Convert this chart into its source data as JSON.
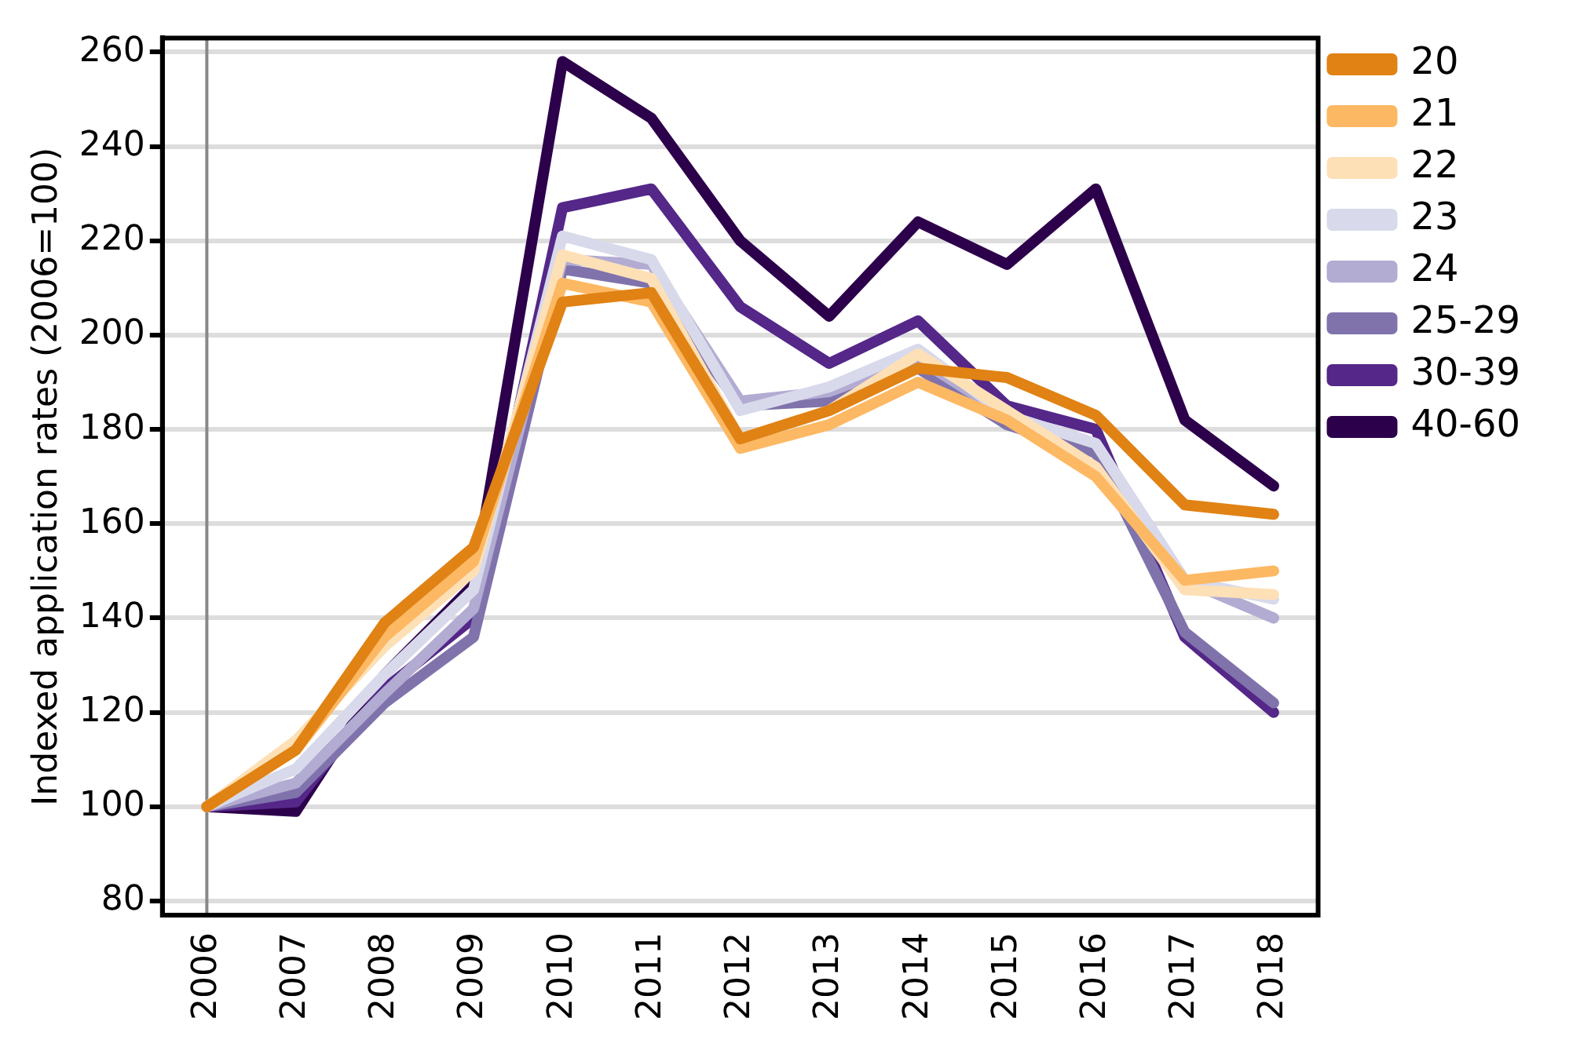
{
  "chart_data": {
    "type": "line",
    "ylabel": "Indexed application rates (2006=100)",
    "categories": [
      "2006",
      "2007",
      "2008",
      "2009",
      "2010",
      "2011",
      "2012",
      "2013",
      "2014",
      "2015",
      "2016",
      "2017",
      "2018"
    ],
    "series": [
      {
        "name": "20",
        "color": "#e08214",
        "values": [
          100,
          112,
          139,
          155,
          207,
          209,
          178,
          184,
          193,
          191,
          183,
          164,
          162
        ]
      },
      {
        "name": "21",
        "color": "#fdb863",
        "values": [
          100,
          112,
          136,
          152,
          211,
          207,
          176,
          181,
          190,
          182,
          170,
          148,
          150
        ]
      },
      {
        "name": "22",
        "color": "#fee0b6",
        "values": [
          100,
          114,
          134,
          150,
          217,
          212,
          178,
          184,
          196,
          184,
          172,
          146,
          145
        ]
      },
      {
        "name": "23",
        "color": "#d8daeb",
        "values": [
          100,
          108,
          128,
          146,
          221,
          216,
          184,
          189,
          197,
          183,
          177,
          148,
          144
        ]
      },
      {
        "name": "24",
        "color": "#b2abd2",
        "values": [
          100,
          105,
          124,
          142,
          216,
          215,
          186,
          188,
          195,
          183,
          177,
          148,
          140
        ]
      },
      {
        "name": "25-29",
        "color": "#8073ac",
        "values": [
          100,
          103,
          122,
          136,
          214,
          211,
          185,
          186,
          193,
          181,
          175,
          137,
          122
        ]
      },
      {
        "name": "30-39",
        "color": "#542788",
        "values": [
          100,
          101,
          125,
          140,
          227,
          231,
          206,
          194,
          203,
          185,
          180,
          136,
          120
        ]
      },
      {
        "name": "40-60",
        "color": "#2d004b",
        "values": [
          100,
          99,
          128,
          147,
          258,
          246,
          220,
          204,
          224,
          215,
          231,
          182,
          168
        ]
      }
    ],
    "ylim": [
      77,
      263
    ],
    "yticks": [
      80,
      100,
      120,
      140,
      160,
      180,
      200,
      220,
      240,
      260
    ],
    "ref_lines": [
      {
        "axis": "x",
        "value": "2006",
        "color": "#888888"
      }
    ],
    "grid": "y",
    "legend": "right",
    "marker": "none",
    "line_style": "solid"
  }
}
